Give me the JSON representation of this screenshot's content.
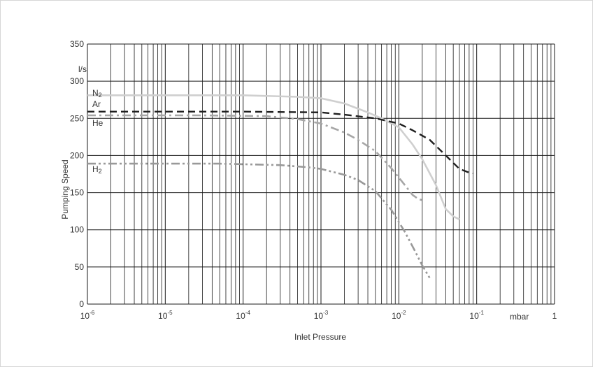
{
  "chart_data": {
    "type": "line",
    "title": "",
    "xlabel": "Inlet Pressure",
    "ylabel": "Pumping Speed",
    "x_unit": "mbar",
    "y_unit": "l/s",
    "x_scale": "log",
    "xlim": [
      1e-06,
      1
    ],
    "ylim": [
      0,
      350
    ],
    "grid": true,
    "legend": "inline-left",
    "x_ticks": [
      {
        "base": "10",
        "exp": "-6"
      },
      {
        "base": "10",
        "exp": "-5"
      },
      {
        "base": "10",
        "exp": "-4"
      },
      {
        "base": "10",
        "exp": "-3"
      },
      {
        "base": "10",
        "exp": "-2"
      },
      {
        "base": "10",
        "exp": "-1"
      },
      {
        "base": "1",
        "exp": ""
      }
    ],
    "y_ticks": [
      "0",
      "50",
      "100",
      "150",
      "200",
      "250",
      "300",
      "350"
    ],
    "series": [
      {
        "name": "N2",
        "name_base": "N",
        "name_sub": "2",
        "color": "#cfcfcf",
        "dash": "solid",
        "points": [
          [
            1e-06,
            281
          ],
          [
            0.0001,
            281
          ],
          [
            0.0005,
            279
          ],
          [
            0.001,
            277
          ],
          [
            0.002,
            270
          ],
          [
            0.004,
            258
          ],
          [
            0.006,
            250
          ],
          [
            0.01,
            238
          ],
          [
            0.015,
            215
          ],
          [
            0.02,
            195
          ],
          [
            0.03,
            160
          ],
          [
            0.04,
            128
          ],
          [
            0.05,
            118
          ],
          [
            0.06,
            114
          ]
        ]
      },
      {
        "name": "Ar",
        "name_base": "Ar",
        "name_sub": "",
        "color": "#1f1f1f",
        "dash": "dashed",
        "points": [
          [
            1e-06,
            259
          ],
          [
            0.0001,
            259
          ],
          [
            0.001,
            258
          ],
          [
            0.002,
            255
          ],
          [
            0.005,
            250
          ],
          [
            0.01,
            243
          ],
          [
            0.015,
            234
          ],
          [
            0.025,
            221
          ],
          [
            0.04,
            200
          ],
          [
            0.06,
            182
          ],
          [
            0.08,
            177
          ],
          [
            0.09,
            176
          ]
        ]
      },
      {
        "name": "He",
        "name_base": "He",
        "name_sub": "",
        "color": "#a6a6a6",
        "dash": "dash-dot",
        "points": [
          [
            1e-06,
            254
          ],
          [
            3e-05,
            254
          ],
          [
            0.0002,
            253
          ],
          [
            0.0005,
            249
          ],
          [
            0.001,
            243
          ],
          [
            0.002,
            231
          ],
          [
            0.003,
            221
          ],
          [
            0.005,
            206
          ],
          [
            0.008,
            183
          ],
          [
            0.012,
            160
          ],
          [
            0.015,
            147
          ],
          [
            0.018,
            141
          ],
          [
            0.02,
            140
          ]
        ]
      },
      {
        "name": "H2",
        "name_base": "H",
        "name_sub": "2",
        "color": "#999999",
        "dash": "dash-dot-dot",
        "points": [
          [
            1e-06,
            189
          ],
          [
            5e-05,
            189
          ],
          [
            0.0003,
            187
          ],
          [
            0.0007,
            184
          ],
          [
            0.001,
            182
          ],
          [
            0.002,
            174
          ],
          [
            0.003,
            167
          ],
          [
            0.005,
            152
          ],
          [
            0.008,
            127
          ],
          [
            0.012,
            97
          ],
          [
            0.016,
            72
          ],
          [
            0.02,
            52
          ],
          [
            0.025,
            35
          ]
        ]
      }
    ]
  }
}
